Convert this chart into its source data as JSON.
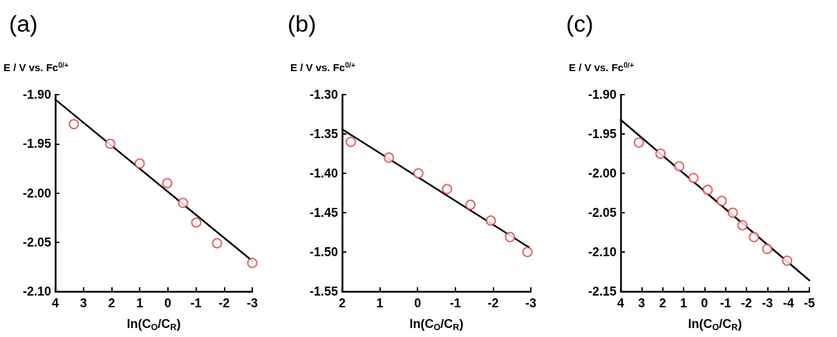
{
  "chart_data": [
    {
      "type": "scatter",
      "title": "(a)",
      "ylabel": "E / V vs. Fc$^{0/+}$",
      "xlabel": "ln(C$_{O}$/C$_{R}$)",
      "xlim": [
        4,
        -3
      ],
      "xticks": [
        4,
        3,
        2,
        1,
        0,
        -1,
        -2,
        -3
      ],
      "ylim": [
        -2.1,
        -1.9
      ],
      "yticks": [
        {
          "value": -2.1,
          "label": "-2.10"
        },
        {
          "value": -2.05,
          "label": "-2.05"
        },
        {
          "value": -2.0,
          "label": "-2.00"
        },
        {
          "value": -1.95,
          "label": "-1.95"
        },
        {
          "value": -1.9,
          "label": "-1.90"
        }
      ],
      "grid": false,
      "series": [
        {
          "marker": "circle",
          "color": "#e03c3c",
          "x": [
            3.34,
            2.05,
            1.0,
            0.02,
            -0.54,
            -1.01,
            -1.75,
            -3.0
          ],
          "values": [
            -1.93,
            -1.95,
            -1.97,
            -1.99,
            -2.01,
            -2.03,
            -2.051,
            -2.071
          ]
        },
        {
          "type": "line",
          "marker": "none",
          "line_style": "solid",
          "color": "#000000",
          "x": [
            4,
            -3
          ],
          "values": [
            -1.905,
            -2.069
          ]
        }
      ]
    },
    {
      "type": "scatter",
      "title": "(b)",
      "ylabel": "E / V vs. Fc$^{0/+}$",
      "xlabel": "ln(C$_{O}$/C$_{R}$)",
      "xlim": [
        2,
        -3
      ],
      "xticks": [
        2,
        1,
        0,
        -1,
        -2,
        -3
      ],
      "ylim": [
        -1.55,
        -1.3
      ],
      "yticks": [
        {
          "value": -1.55,
          "label": "-1.55"
        },
        {
          "value": -1.5,
          "label": "-1.50"
        },
        {
          "value": -1.45,
          "label": "-1.45"
        },
        {
          "value": -1.4,
          "label": "-1.40"
        },
        {
          "value": -1.35,
          "label": "-1.35"
        },
        {
          "value": -1.3,
          "label": "-1.30"
        }
      ],
      "grid": false,
      "series": [
        {
          "marker": "circle",
          "color": "#e03c3c",
          "x": [
            1.77,
            0.76,
            -0.02,
            -0.78,
            -1.4,
            -1.94,
            -2.45,
            -2.91
          ],
          "values": [
            -1.36,
            -1.38,
            -1.4,
            -1.42,
            -1.44,
            -1.46,
            -1.481,
            -1.5
          ]
        },
        {
          "type": "line",
          "marker": "none",
          "line_style": "solid",
          "color": "#000000",
          "x": [
            2,
            -2.95
          ],
          "values": [
            -1.344,
            -1.494
          ]
        }
      ]
    },
    {
      "type": "scatter",
      "title": "(c)",
      "ylabel": "E / V vs. Fc$^{0/+}$",
      "xlabel": "ln(C$_{O}$/C$_{R}$)",
      "xlim": [
        4,
        -5
      ],
      "xticks": [
        4,
        3,
        2,
        1,
        0,
        -1,
        -2,
        -3,
        -4,
        -5
      ],
      "ylim": [
        -2.15,
        -1.9
      ],
      "yticks": [
        {
          "value": -2.15,
          "label": "-2.15"
        },
        {
          "value": -2.1,
          "label": "-2.10"
        },
        {
          "value": -2.05,
          "label": "-2.05"
        },
        {
          "value": -2.0,
          "label": "-2.00"
        },
        {
          "value": -1.95,
          "label": "-1.95"
        },
        {
          "value": -1.9,
          "label": "-1.90"
        }
      ],
      "grid": false,
      "series": [
        {
          "marker": "circle",
          "color": "#e03c3c",
          "x": [
            3.13,
            2.1,
            1.21,
            0.53,
            -0.15,
            -0.82,
            -1.35,
            -1.81,
            -2.36,
            -2.99,
            -3.94
          ],
          "values": [
            -1.961,
            -1.975,
            -1.991,
            -2.006,
            -2.021,
            -2.035,
            -2.05,
            -2.066,
            -2.081,
            -2.096,
            -2.111
          ]
        },
        {
          "type": "line",
          "marker": "none",
          "line_style": "solid",
          "color": "#000000",
          "x": [
            4,
            -5
          ],
          "values": [
            -1.932,
            -2.136
          ]
        }
      ]
    }
  ]
}
